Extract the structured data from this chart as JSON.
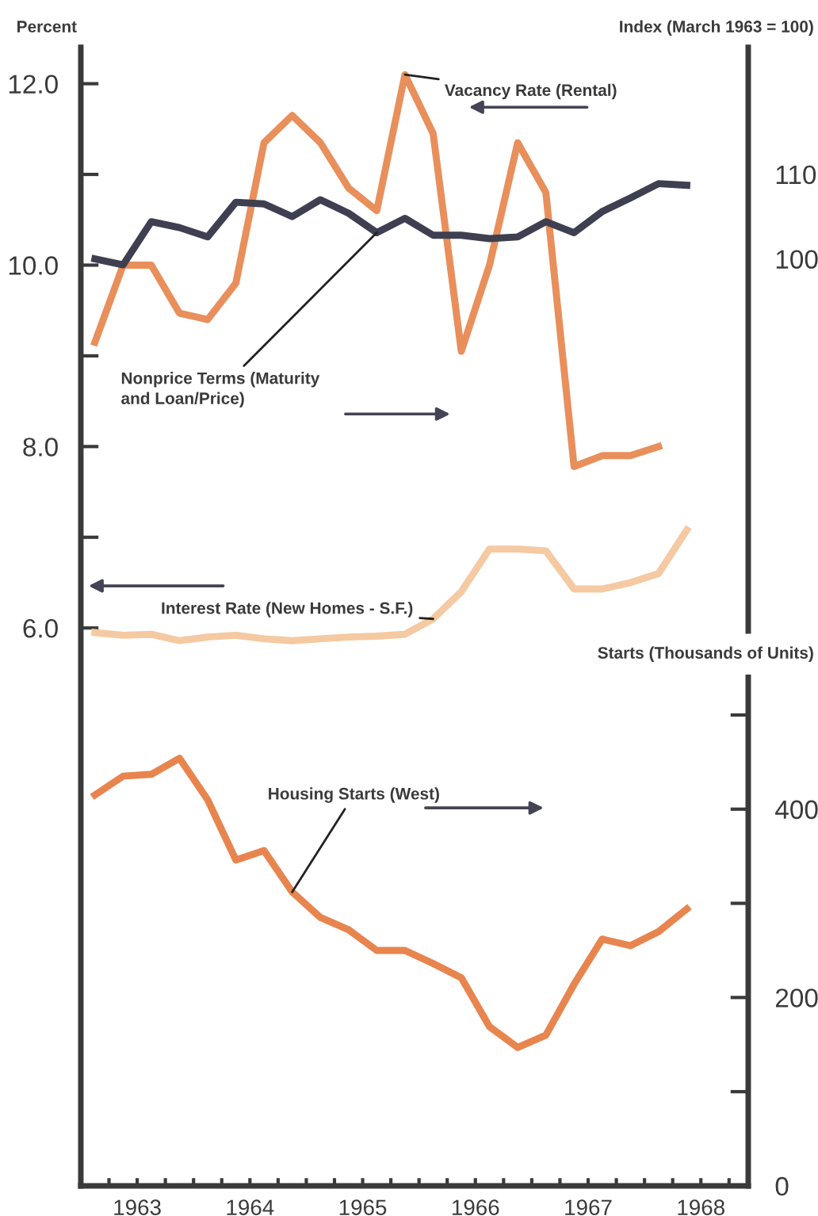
{
  "chart_data": {
    "type": "line",
    "ylabel": "Percent",
    "y2label": "Index (March 1963 = 100)",
    "y3label": "Starts (Thousands of Units)",
    "xlim": [
      1963,
      1968.92
    ],
    "ylim": [
      -0.15,
      12.4
    ],
    "y2lim": [
      56,
      125
    ],
    "y3lim": [
      0,
      540
    ],
    "xticks": [
      {
        "value": 1963.25,
        "label": null
      },
      {
        "value": 1963.5,
        "label": "1963"
      },
      {
        "value": 1963.75,
        "label": null
      },
      {
        "value": 1964,
        "label": null
      },
      {
        "value": 1964.25,
        "label": null
      },
      {
        "value": 1964.5,
        "label": "1964"
      },
      {
        "value": 1964.75,
        "label": null
      },
      {
        "value": 1965,
        "label": null
      },
      {
        "value": 1965.25,
        "label": null
      },
      {
        "value": 1965.5,
        "label": "1965"
      },
      {
        "value": 1965.75,
        "label": null
      },
      {
        "value": 1966,
        "label": null
      },
      {
        "value": 1966.25,
        "label": null
      },
      {
        "value": 1966.5,
        "label": "1966"
      },
      {
        "value": 1966.75,
        "label": null
      },
      {
        "value": 1967,
        "label": null
      },
      {
        "value": 1967.25,
        "label": null
      },
      {
        "value": 1967.5,
        "label": "1967"
      },
      {
        "value": 1967.75,
        "label": null
      },
      {
        "value": 1968,
        "label": null
      },
      {
        "value": 1968.25,
        "label": null
      },
      {
        "value": 1968.5,
        "label": "1968"
      },
      {
        "value": 1968.75,
        "label": null
      }
    ],
    "yticks": [
      {
        "value": 6,
        "label": "6.0"
      },
      {
        "value": 7,
        "label": null
      },
      {
        "value": 8,
        "label": "8.0"
      },
      {
        "value": 9,
        "label": null
      },
      {
        "value": 10,
        "label": "10.0"
      },
      {
        "value": 11,
        "label": null
      },
      {
        "value": 12,
        "label": "12.0"
      }
    ],
    "y2ticks": [
      100,
      110
    ],
    "y3ticks": [
      0,
      {
        "value": 100,
        "label": null
      },
      200,
      {
        "value": 300,
        "label": null
      },
      400,
      {
        "value": 500,
        "label": null
      }
    ],
    "grid": false,
    "marker": "none",
    "line_style": "solid",
    "series": [
      {
        "name": "Vacancy Rate (Rental)",
        "color": "#e98f5b",
        "axis": "y",
        "x": [
          1963.125,
          1963.375,
          1963.625,
          1963.875,
          1964.125,
          1964.375,
          1964.625,
          1964.875,
          1965.125,
          1965.375,
          1965.625,
          1965.875,
          1966.125,
          1966.375,
          1966.625,
          1966.875,
          1967.125,
          1967.375,
          1967.625,
          1967.875,
          1968.125
        ],
        "values": [
          9.15,
          10.0,
          10.0,
          9.47,
          9.4,
          9.8,
          11.35,
          11.65,
          11.35,
          10.85,
          10.6,
          12.1,
          11.45,
          9.05,
          10.0,
          11.35,
          10.8,
          7.78,
          7.9,
          7.9,
          8.0
        ]
      },
      {
        "name": "Nonprice Terms (Maturity\nand Loan/Price)",
        "color": "#3e3f50",
        "axis": "y2",
        "x": [
          1963.125,
          1963.375,
          1963.625,
          1963.875,
          1964.125,
          1964.375,
          1964.625,
          1964.875,
          1965.125,
          1965.375,
          1965.625,
          1965.875,
          1966.125,
          1966.375,
          1966.625,
          1966.875,
          1967.125,
          1967.375,
          1967.625,
          1967.875,
          1968.125,
          1968.375
        ],
        "values": [
          100,
          99.3,
          104.4,
          103.7,
          102.6,
          106.7,
          106.5,
          105,
          107,
          105.4,
          103.1,
          104.8,
          102.8,
          102.8,
          102.4,
          102.6,
          104.4,
          103.1,
          105.6,
          107.2,
          108.9,
          108.7
        ]
      },
      {
        "name": "Interest Rate (New Homes - S.F.)",
        "color": "#f5c9a2",
        "axis": "y",
        "x": [
          1963.125,
          1963.375,
          1963.625,
          1963.875,
          1964.125,
          1964.375,
          1964.625,
          1964.875,
          1965.125,
          1965.375,
          1965.625,
          1965.875,
          1966.125,
          1966.375,
          1966.625,
          1966.875,
          1967.125,
          1967.375,
          1967.625,
          1967.875,
          1968.125,
          1968.375
        ],
        "values": [
          5.95,
          5.92,
          5.93,
          5.86,
          5.9,
          5.92,
          5.88,
          5.86,
          5.88,
          5.9,
          5.91,
          5.93,
          6.1,
          6.4,
          6.87,
          6.87,
          6.85,
          6.43,
          6.43,
          6.5,
          6.6,
          7.08
        ]
      },
      {
        "name": "Housing Starts (West)",
        "color": "#e8854f",
        "axis": "y3",
        "x": [
          1963.125,
          1963.375,
          1963.625,
          1963.875,
          1964.125,
          1964.375,
          1964.625,
          1964.875,
          1965.125,
          1965.375,
          1965.625,
          1965.875,
          1966.125,
          1966.375,
          1966.625,
          1966.875,
          1967.125,
          1967.375,
          1967.625,
          1967.875,
          1968.125,
          1968.375
        ],
        "values": [
          415,
          435,
          437,
          454,
          410,
          346,
          356,
          312,
          285,
          272,
          250,
          250,
          236,
          221,
          169,
          147,
          160,
          214,
          262,
          255,
          270,
          294
        ]
      }
    ]
  }
}
